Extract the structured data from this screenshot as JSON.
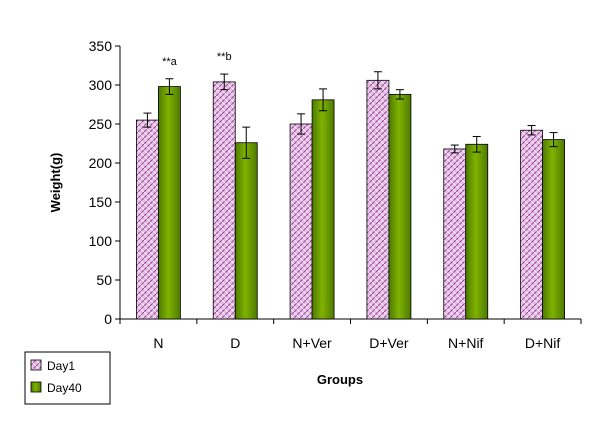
{
  "chart_data": {
    "type": "bar",
    "categories": [
      "N",
      "D",
      "N+Ver",
      "D+Ver",
      "N+Nif",
      "D+Nif"
    ],
    "series": [
      {
        "name": "Day1",
        "values": [
          255,
          304,
          250,
          306,
          218,
          242
        ],
        "errors": [
          9,
          10,
          13,
          11,
          5,
          6
        ],
        "color": "#e6b8e6",
        "pattern": "pink-crosshatch"
      },
      {
        "name": "Day40",
        "values": [
          298,
          226,
          281,
          288,
          224,
          230
        ],
        "errors": [
          10,
          20,
          14,
          6,
          10,
          9
        ],
        "color": "#669900",
        "pattern": "green-gradient"
      }
    ],
    "xlabel": "Groups",
    "ylabel": "Weight(g)",
    "ylim": [
      0,
      350
    ],
    "yticks": [
      "0",
      "50",
      "100",
      "150",
      "200",
      "250",
      "300",
      "350"
    ],
    "grid": false,
    "legend_position": "bottom-left",
    "annotations": [
      {
        "text": "**a",
        "category": "N",
        "series": "Day40"
      },
      {
        "text": "**b",
        "category": "D",
        "series": "Day1"
      }
    ]
  }
}
